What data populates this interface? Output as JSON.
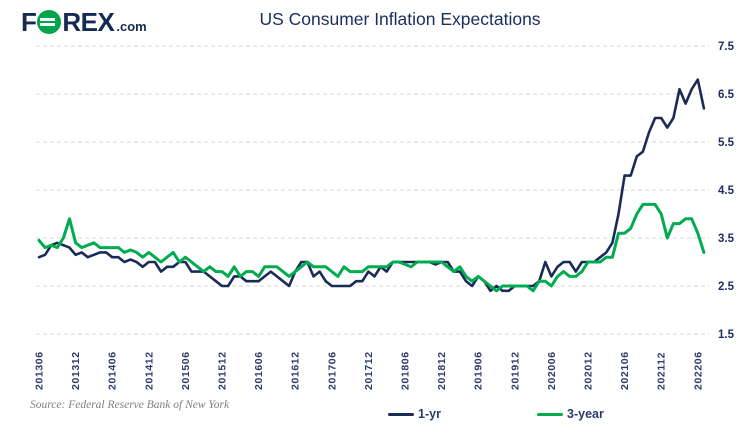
{
  "logo": {
    "f": "F",
    "rex": "REX",
    "tld": ".com"
  },
  "header": {
    "title": "US Consumer Inflation Expectations"
  },
  "source": "Source: Federal Reserve Bank of New York",
  "colors": {
    "navy_line": "#1b2b57",
    "green_line": "#00ac4f",
    "title_text": "#1b2d5e",
    "axis_text": "#2c3a6b",
    "gridline": "#d8d8d8",
    "logo_green": "#00a44d",
    "source_gray": "#7f7f7f"
  },
  "chart_data": {
    "type": "line",
    "title": "US Consumer Inflation Expectations",
    "x_unit": "month (YYYYMM)",
    "x_months_from": "2013-06",
    "x_months_to": "2022-07",
    "n_points": 110,
    "xticks": [
      "201306",
      "201312",
      "201406",
      "201412",
      "201506",
      "201512",
      "201606",
      "201612",
      "201706",
      "201712",
      "201806",
      "201812",
      "201906",
      "201912",
      "202006",
      "202012",
      "202106",
      "202112",
      "202206"
    ],
    "yticks": [
      7.5,
      6.5,
      5.5,
      4.5,
      3.5,
      2.5,
      1.5
    ],
    "ylim": [
      1.5,
      7.5
    ],
    "grid": "horizontal-dashed",
    "legend_position": "bottom",
    "series": [
      {
        "name": "1-yr",
        "color": "#1b2b57",
        "stroke_width": 2.6,
        "values": [
          3.1,
          3.15,
          3.35,
          3.4,
          3.35,
          3.3,
          3.15,
          3.2,
          3.1,
          3.15,
          3.2,
          3.2,
          3.1,
          3.1,
          3.0,
          3.05,
          3.0,
          2.9,
          3.0,
          3.0,
          2.8,
          2.9,
          2.9,
          3.0,
          3.0,
          2.8,
          2.8,
          2.8,
          2.7,
          2.6,
          2.5,
          2.5,
          2.7,
          2.7,
          2.6,
          2.6,
          2.6,
          2.7,
          2.8,
          2.7,
          2.6,
          2.5,
          2.8,
          3.0,
          3.0,
          2.7,
          2.8,
          2.6,
          2.5,
          2.5,
          2.5,
          2.5,
          2.6,
          2.6,
          2.8,
          2.7,
          2.9,
          2.8,
          3.0,
          3.0,
          3.0,
          3.0,
          3.0,
          3.0,
          3.0,
          2.95,
          3.0,
          3.0,
          2.8,
          2.8,
          2.6,
          2.5,
          2.7,
          2.6,
          2.4,
          2.5,
          2.4,
          2.4,
          2.5,
          2.5,
          2.5,
          2.5,
          2.6,
          3.0,
          2.7,
          2.9,
          3.0,
          3.0,
          2.8,
          3.0,
          3.0,
          3.0,
          3.1,
          3.2,
          3.4,
          4.0,
          4.8,
          4.8,
          5.2,
          5.3,
          5.7,
          6.0,
          6.0,
          5.8,
          6.0,
          6.6,
          6.3,
          6.6,
          6.8,
          6.2
        ]
      },
      {
        "name": "3-year",
        "color": "#00ac4f",
        "stroke_width": 3,
        "values": [
          3.45,
          3.3,
          3.35,
          3.3,
          3.5,
          3.9,
          3.4,
          3.3,
          3.35,
          3.4,
          3.3,
          3.3,
          3.3,
          3.3,
          3.2,
          3.25,
          3.2,
          3.1,
          3.2,
          3.1,
          3.0,
          3.1,
          3.2,
          3.0,
          3.1,
          3.0,
          2.9,
          2.8,
          2.9,
          2.8,
          2.8,
          2.7,
          2.9,
          2.7,
          2.8,
          2.8,
          2.7,
          2.9,
          2.9,
          2.9,
          2.8,
          2.7,
          2.8,
          2.9,
          3.0,
          2.9,
          2.9,
          2.9,
          2.8,
          2.7,
          2.9,
          2.8,
          2.8,
          2.8,
          2.9,
          2.9,
          2.9,
          2.9,
          3.0,
          3.0,
          2.95,
          2.9,
          3.0,
          3.0,
          3.0,
          3.0,
          3.0,
          2.9,
          2.8,
          2.9,
          2.7,
          2.6,
          2.7,
          2.6,
          2.5,
          2.4,
          2.5,
          2.5,
          2.5,
          2.5,
          2.5,
          2.4,
          2.6,
          2.6,
          2.5,
          2.7,
          2.8,
          2.7,
          2.7,
          2.8,
          3.0,
          3.0,
          3.0,
          3.1,
          3.1,
          3.6,
          3.6,
          3.7,
          4.0,
          4.2,
          4.2,
          4.2,
          4.0,
          3.5,
          3.8,
          3.8,
          3.9,
          3.9,
          3.6,
          3.2
        ]
      }
    ]
  }
}
